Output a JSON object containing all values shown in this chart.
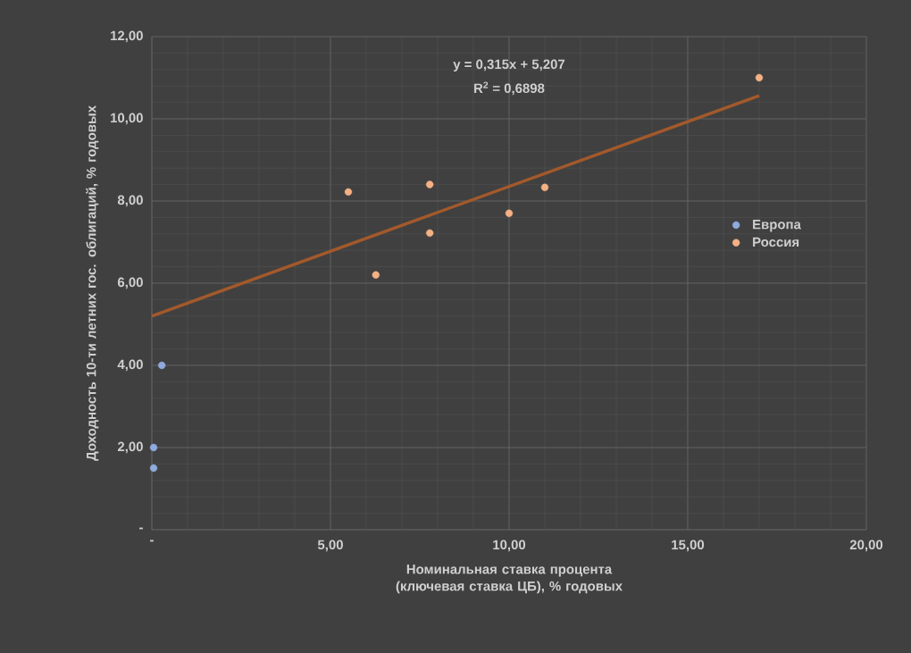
{
  "chart_data": {
    "type": "scatter",
    "xlabel": "Номинальная ставка процента (ключевая ставка ЦБ), % годовых",
    "ylabel": "Доходность 10-ти летних гос. облигаций, % годовых",
    "series": [
      {
        "name": "Европа",
        "color": "#8faadc",
        "marker": "circle",
        "x": [
          0.28,
          0.05,
          0.05
        ],
        "values": [
          4.0,
          2.0,
          1.5
        ]
      },
      {
        "name": "Россия",
        "color": "#f4b183",
        "marker": "circle",
        "x": [
          5.5,
          6.27,
          7.78,
          7.78,
          10.0,
          11.0,
          17.0
        ],
        "values": [
          8.22,
          6.2,
          8.4,
          7.22,
          7.7,
          8.33,
          11.0
        ]
      },
      {
        "type": "line",
        "color": "#a3592b",
        "marker": "none",
        "x": [
          0,
          17.0
        ],
        "values": [
          5.2,
          10.56
        ]
      }
    ],
    "annotations": [
      "y = 0,315x + 5,207",
      "R$^{2}$ = 0,6898"
    ],
    "xlim": [
      0,
      20
    ],
    "ylim": [
      0,
      12
    ],
    "xticks": [
      {
        "value": 0,
        "label": "-"
      },
      {
        "value": 5,
        "label": "5,00"
      },
      {
        "value": 10,
        "label": "10,00"
      },
      {
        "value": 15,
        "label": "15,00"
      },
      {
        "value": 20,
        "label": "20,00"
      }
    ],
    "yticks": [
      {
        "value": 0,
        "label": "-"
      },
      {
        "value": 2,
        "label": "2,00"
      },
      {
        "value": 4,
        "label": "4,00"
      },
      {
        "value": 6,
        "label": "6,00"
      },
      {
        "value": 8,
        "label": "8,00"
      },
      {
        "value": 10,
        "label": "10,00"
      },
      {
        "value": 12,
        "label": "12,00"
      }
    ],
    "grid": true,
    "legend": "right"
  }
}
